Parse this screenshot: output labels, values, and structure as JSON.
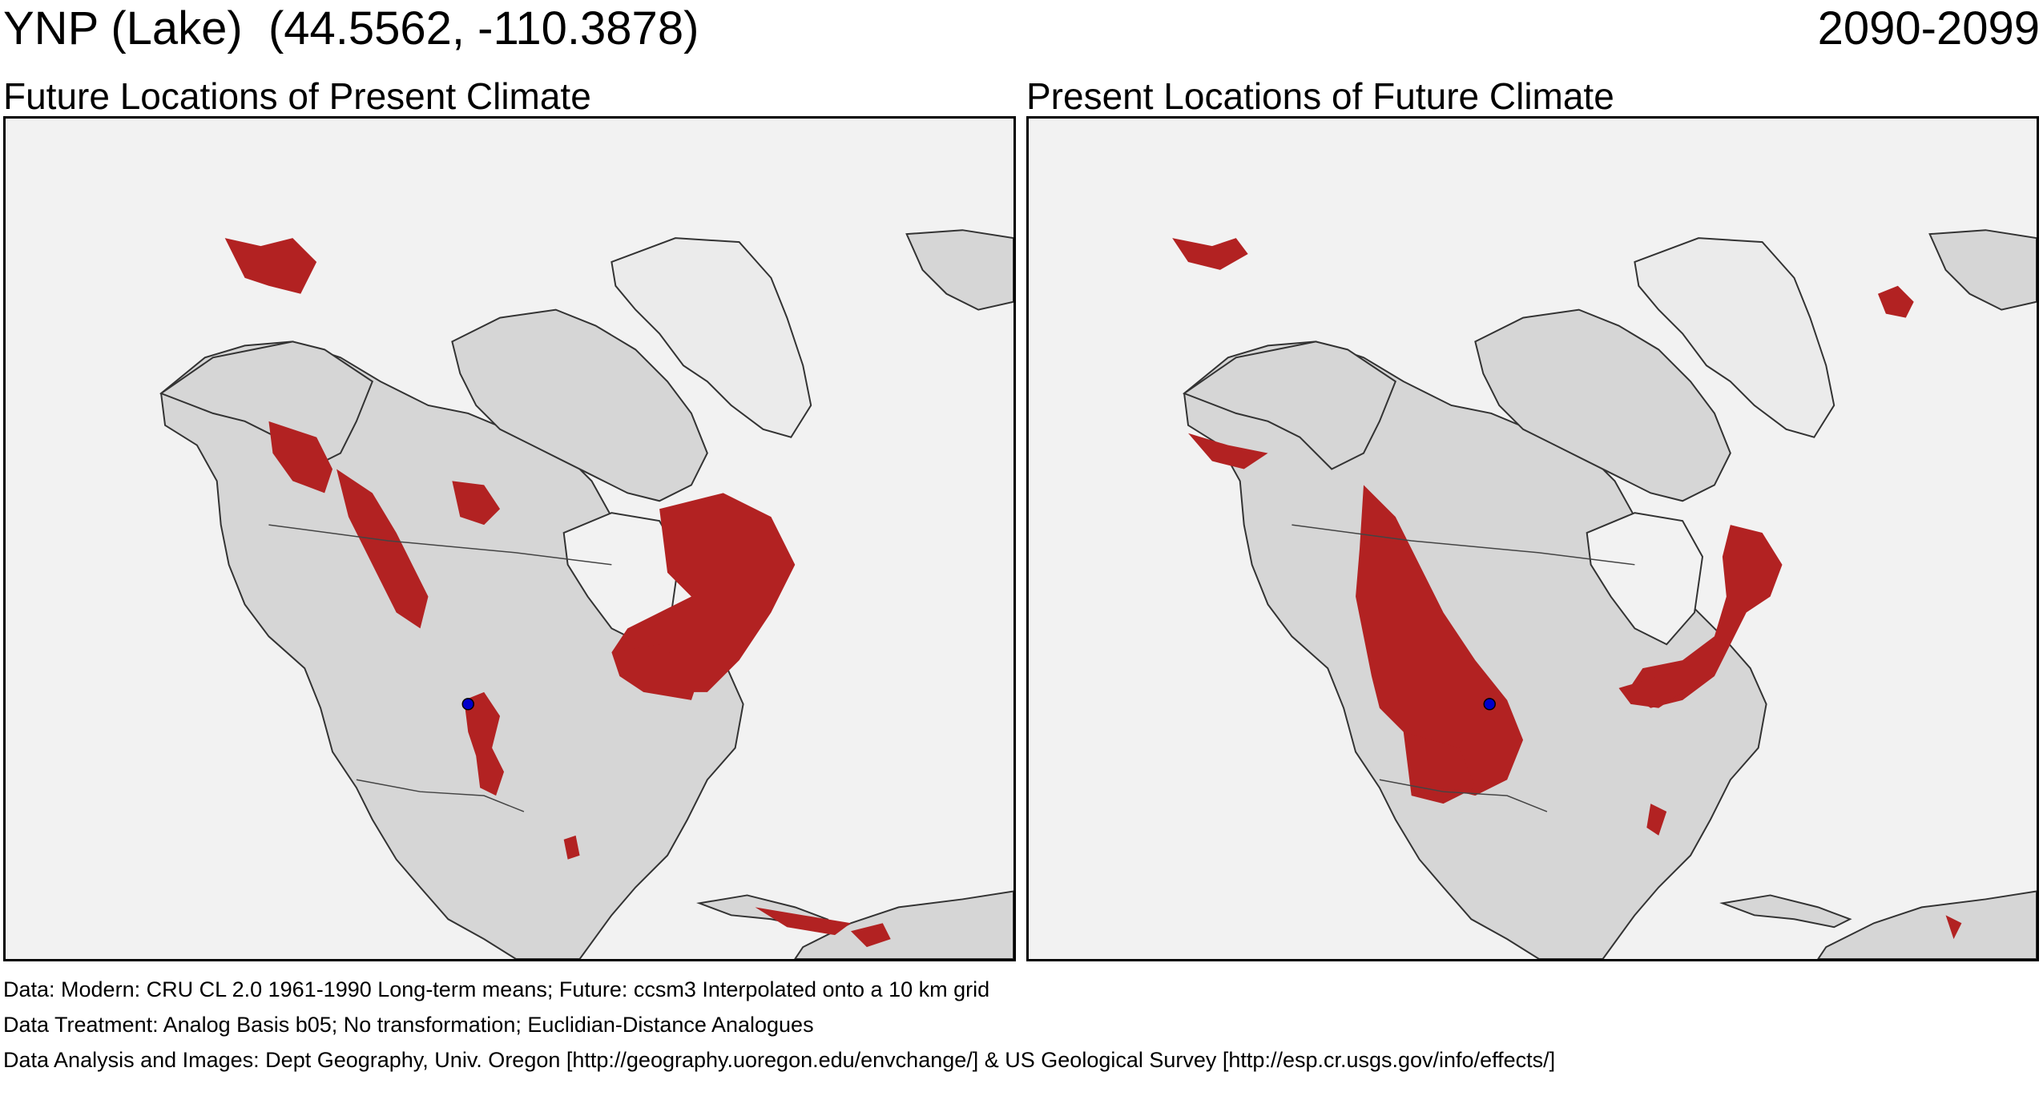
{
  "header": {
    "title": "YNP (Lake)  (44.5562, -110.3878)",
    "period": "2090-2099"
  },
  "panels": [
    {
      "title": "Future Locations of Present Climate"
    },
    {
      "title": "Present Locations of Future Climate"
    }
  ],
  "footer": {
    "line1": "Data:  Modern: CRU CL 2.0 1961-1990 Long-term means; Future: ccsm3 Interpolated onto a 10 km grid",
    "line2": "Data Treatment:  Analog Basis b05; No transformation; Euclidian-Distance Analogues",
    "line3": "Data Analysis and Images:  Dept Geography, Univ. Oregon [http://geography.uoregon.edu/envchange/] & US Geological Survey [http://esp.cr.usgs.gov/info/effects/]"
  },
  "colors": {
    "analog_region": "#b22222",
    "site_marker": "#0000cc",
    "land": "#d6d6d6",
    "water": "#f2f2f2",
    "greenland_ice": "#ebebeb"
  },
  "site": {
    "name": "YNP (Lake)",
    "lat": 44.5562,
    "lon": -110.3878
  }
}
